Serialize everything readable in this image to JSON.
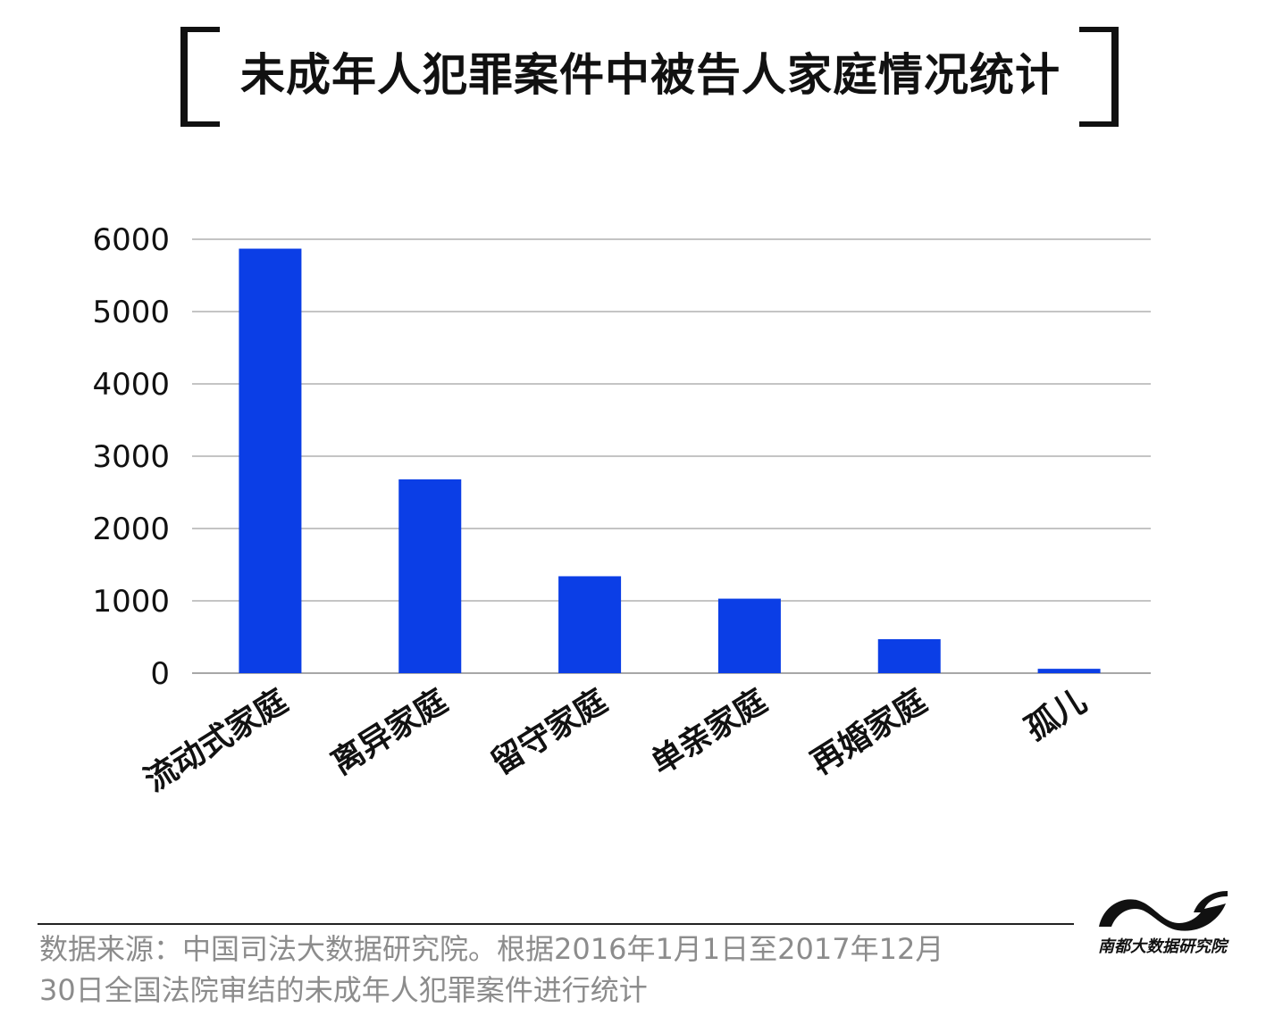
{
  "title": "未成年人犯罪案件中被告人家庭情况统计",
  "chart_data": {
    "type": "bar",
    "categories": [
      "流动式家庭",
      "离异家庭",
      "留守家庭",
      "单亲家庭",
      "再婚家庭",
      "孤儿"
    ],
    "values": [
      5870,
      2680,
      1340,
      1030,
      470,
      60
    ],
    "ylim": [
      0,
      6000
    ],
    "yticks": [
      0,
      1000,
      2000,
      3000,
      4000,
      5000,
      6000
    ],
    "grid": true,
    "bar_color": "#0b3ee6",
    "grid_color": "#8a8a8a"
  },
  "footer": {
    "source_line1": "数据来源：中国司法大数据研究院。根据2016年1月1日至2017年12月",
    "source_line2": "30日全国法院审结的未成年人犯罪案件进行统计",
    "logo_text": "南都大数据研究院"
  }
}
